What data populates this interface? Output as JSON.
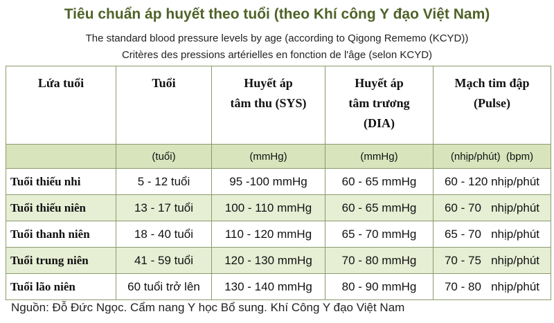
{
  "header": {
    "title": "Tiêu chuẩn áp huyết theo tuổi (theo Khí công Y đạo Việt Nam)",
    "subtitle_en": "The standard blood pressure levels by age (according to Qigong Rememo (KCYD))",
    "subtitle_fr": "Critères des pressions artérielles en fonction de l'âge (selon KCYD)"
  },
  "table": {
    "columns": [
      [
        "Lứa tuổi"
      ],
      [
        "Tuổi"
      ],
      [
        "Huyết áp",
        "tâm thu (SYS)"
      ],
      [
        "Huyết áp",
        "tâm trương",
        "(DIA)"
      ],
      [
        "Mạch tim đập",
        "(Pulse)"
      ]
    ],
    "units": [
      null,
      "(tuổi)",
      "(mmHg)",
      "(mmHg)",
      "(nhịp/phút)  (bpm)"
    ],
    "rows": [
      [
        "Tuổi thiếu nhi",
        "5 - 12 tuổi",
        "95 -100 mmHg",
        "60 - 65 mmHg",
        "60 - 120 nhịp/phút"
      ],
      [
        "Tuổi thiếu niên",
        "13 - 17 tuổi",
        "100 - 110 mmHg",
        "60 - 65 mmHg",
        "60 - 70   nhịp/phút"
      ],
      [
        "Tuổi thanh niên",
        "18 - 40 tuổi",
        "110 - 120 mmHg",
        "65 - 70 mmHg",
        "65 - 70   nhịp/phút"
      ],
      [
        "Tuổi trung niên",
        "41 - 59 tuổi",
        "120 - 130 mmHg",
        "70 - 80 mmHg",
        "70 - 75   nhịp/phút"
      ],
      [
        "Tuổi lão niên",
        "60 tuổi trở lên",
        "130 - 140 mmHg",
        "80 - 90 mmHg",
        "70 - 80   nhịp/phút"
      ]
    ]
  },
  "footer": {
    "source": "Nguồn: Đỗ Đức Ngọc. Cẩm nang Y học Bổ sung. Khí Công Y đạo Việt Nam"
  }
}
